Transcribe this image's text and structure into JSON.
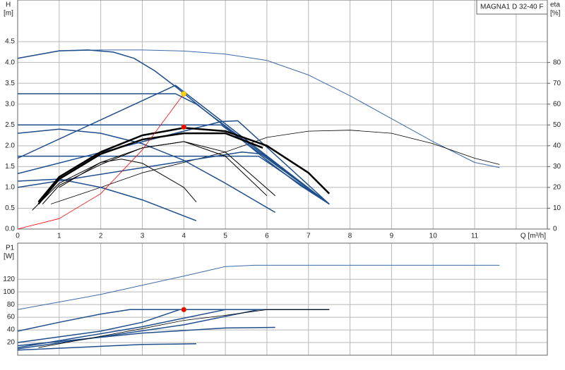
{
  "chart_data": [
    {
      "type": "line",
      "title": "MAGNA1 D 32-40 F",
      "ylabel": "H",
      "yunit": "[m]",
      "y2label": "eta",
      "y2unit": "[%]",
      "xlabel": "Q [m³/h]",
      "xlim": [
        0,
        12.75
      ],
      "ylim": [
        0,
        5.5
      ],
      "y2lim": [
        0,
        110
      ],
      "xticks": [
        0,
        1,
        2,
        3,
        4,
        5,
        6,
        7,
        8,
        9,
        10,
        11
      ],
      "xgrid": [
        1,
        2,
        3,
        4,
        5,
        6,
        7,
        8,
        9,
        10,
        11,
        12
      ],
      "yticks": [
        {
          "value": 0,
          "label": "0.0"
        },
        {
          "value": 0.5,
          "label": "0.5"
        },
        {
          "value": 1,
          "label": "1.0"
        },
        {
          "value": 1.5,
          "label": "1.5"
        },
        {
          "value": 2,
          "label": "2.0"
        },
        {
          "value": 2.5,
          "label": "2.5"
        },
        {
          "value": 3,
          "label": "3.0"
        },
        {
          "value": 3.5,
          "label": "3.5"
        },
        {
          "value": 4,
          "label": "4.0"
        },
        {
          "value": 4.5,
          "label": "4.5"
        }
      ],
      "y2ticks": [
        0,
        10,
        20,
        30,
        40,
        50,
        60,
        70,
        80
      ],
      "grid": true,
      "series": [
        {
          "color": "#3d6aa8",
          "width": 1,
          "axis": "y2",
          "x": [
            0,
            1,
            2,
            3,
            4,
            5,
            6,
            7,
            8,
            9,
            10,
            11,
            11.6
          ],
          "values": [
            82,
            85.5,
            86,
            86,
            85.5,
            84,
            81,
            74,
            64,
            53,
            42,
            32,
            29.5
          ]
        },
        {
          "color": "#000000",
          "width": 0.8,
          "axis": "y2",
          "x": [
            0.8,
            2,
            3,
            4,
            5,
            6,
            7,
            8,
            9,
            10,
            11,
            11.6
          ],
          "values": [
            12,
            20,
            27,
            32,
            37,
            44,
            47,
            47.5,
            46,
            41,
            34,
            31
          ]
        },
        {
          "color": "#1f4e8c",
          "width": 1.5,
          "x": [
            0,
            1,
            1.7,
            2.3,
            2.8,
            3.3,
            3.8,
            4.5,
            5.2,
            6,
            6.8,
            7.5
          ],
          "values": [
            4.1,
            4.28,
            4.3,
            4.25,
            4.1,
            3.8,
            3.42,
            2.85,
            2.3,
            1.65,
            1.05,
            0.6
          ]
        },
        {
          "color": "#1f4e8c",
          "width": 1.5,
          "x": [
            0,
            3.8,
            7.5
          ],
          "values": [
            1.7,
            3.45,
            0.6
          ]
        },
        {
          "color": "#1f4e8c",
          "width": 1.5,
          "x": [
            0,
            3.8,
            4.3,
            7.5
          ],
          "values": [
            3.25,
            3.25,
            3.0,
            0.6
          ]
        },
        {
          "color": "#1f4e8c",
          "width": 1.5,
          "x": [
            0,
            4.9,
            7.5
          ],
          "values": [
            2.5,
            2.5,
            0.6
          ]
        },
        {
          "color": "#1f4e8c",
          "width": 1.5,
          "x": [
            0,
            4.9,
            5.3,
            7.5
          ],
          "values": [
            1.33,
            2.58,
            2.6,
            0.6
          ]
        },
        {
          "color": "#1f4e8c",
          "width": 1.5,
          "x": [
            0,
            5.8,
            7.5
          ],
          "values": [
            1.75,
            1.75,
            0.6
          ]
        },
        {
          "color": "#1f4e8c",
          "width": 1.5,
          "x": [
            0,
            5.4,
            5.9,
            7.5
          ],
          "values": [
            1.0,
            1.85,
            1.8,
            0.6
          ]
        },
        {
          "color": "#1f4e8c",
          "width": 1.5,
          "x": [
            0,
            1,
            2,
            3,
            4,
            5,
            6.2
          ],
          "values": [
            2.3,
            2.4,
            2.3,
            2.05,
            1.65,
            1.1,
            0.4
          ]
        },
        {
          "color": "#1f4e8c",
          "width": 1.5,
          "x": [
            0,
            1,
            2,
            3,
            4.3
          ],
          "values": [
            1.15,
            1.2,
            1.0,
            0.7,
            0.2
          ]
        },
        {
          "color": "#000000",
          "width": 2.5,
          "x": [
            0.5,
            1,
            2,
            3,
            4,
            5,
            6,
            7,
            7.5
          ],
          "values": [
            0.65,
            1.25,
            1.85,
            2.25,
            2.43,
            2.35,
            2.0,
            1.35,
            0.85
          ]
        },
        {
          "color": "#000000",
          "width": 2.5,
          "x": [
            0.5,
            1,
            2,
            3,
            4,
            5,
            5.9
          ],
          "values": [
            0.6,
            1.2,
            1.8,
            2.15,
            2.3,
            2.3,
            1.95
          ]
        },
        {
          "color": "#000000",
          "width": 1,
          "x": [
            0.35,
            1,
            2,
            3,
            4,
            5,
            6.2
          ],
          "values": [
            0.45,
            1.1,
            1.6,
            1.95,
            2.1,
            1.85,
            0.8
          ]
        },
        {
          "color": "#000000",
          "width": 1,
          "x": [
            0.6,
            1,
            2,
            3,
            4,
            5,
            6
          ],
          "values": [
            0.6,
            1.05,
            1.55,
            1.95,
            2.1,
            1.75,
            0.8
          ]
        },
        {
          "color": "#000000",
          "width": 1,
          "x": [
            1,
            2,
            2.5,
            3,
            4,
            4.3
          ],
          "values": [
            1.0,
            1.6,
            1.68,
            1.58,
            1.0,
            0.65
          ]
        },
        {
          "color": "#ff0000",
          "width": 0.8,
          "x": [
            0,
            1,
            2,
            3,
            4
          ],
          "values": [
            0,
            0.25,
            0.85,
            1.9,
            3.25
          ]
        }
      ],
      "markers": [
        {
          "x": 4,
          "y": 3.25,
          "color": "#ffd700"
        },
        {
          "x": 4,
          "y": 2.45,
          "color": "#ff0000"
        }
      ]
    },
    {
      "type": "line",
      "ylabel": "P1",
      "yunit": "[W]",
      "xlim": [
        0,
        12.75
      ],
      "ylim": [
        0,
        177
      ],
      "xgrid": [
        1,
        2,
        3,
        4,
        5,
        6,
        7,
        8,
        9,
        10,
        11,
        12
      ],
      "yticks": [
        20,
        40,
        60,
        80,
        100,
        120
      ],
      "grid": true,
      "series": [
        {
          "color": "#3d6aa8",
          "width": 1,
          "x": [
            0,
            2,
            4,
            5,
            5.7,
            11.6
          ],
          "values": [
            72,
            96,
            125,
            140,
            142,
            142
          ]
        },
        {
          "color": "#1f4e8c",
          "width": 1.5,
          "x": [
            0,
            1,
            2,
            2.7,
            7.5
          ],
          "values": [
            38,
            52,
            65,
            72,
            72
          ]
        },
        {
          "color": "#1f4e8c",
          "width": 1.5,
          "x": [
            0,
            2,
            3,
            3.9,
            7.5
          ],
          "values": [
            20,
            38,
            52,
            72,
            72
          ]
        },
        {
          "color": "#1f4e8c",
          "width": 1.5,
          "x": [
            0,
            3,
            5,
            7.5
          ],
          "values": [
            12,
            45,
            72,
            72
          ]
        },
        {
          "color": "#1f4e8c",
          "width": 1.5,
          "x": [
            0,
            4,
            5.8,
            7.5
          ],
          "values": [
            10,
            48,
            72,
            72
          ]
        },
        {
          "color": "#1f4e8c",
          "width": 1.5,
          "x": [
            0,
            3,
            5,
            6.2
          ],
          "values": [
            15,
            35,
            43,
            44
          ]
        },
        {
          "color": "#1f4e8c",
          "width": 1.5,
          "x": [
            0,
            2,
            3,
            4.3
          ],
          "values": [
            8,
            14,
            17,
            18
          ]
        },
        {
          "color": "#000000",
          "width": 0.8,
          "x": [
            0.5,
            2,
            3,
            4,
            5,
            6,
            7.5
          ],
          "values": [
            12,
            30,
            42,
            55,
            63,
            72,
            72
          ]
        }
      ],
      "markers": [
        {
          "x": 4,
          "y": 72,
          "color": "#ff0000"
        }
      ]
    }
  ]
}
